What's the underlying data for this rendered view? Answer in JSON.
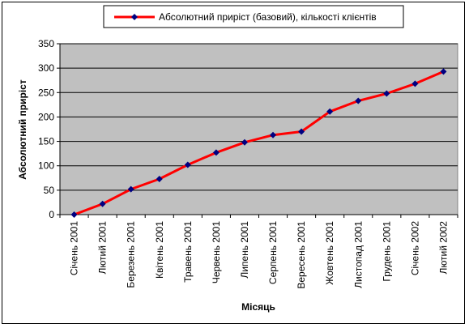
{
  "chart_data": {
    "type": "line",
    "categories": [
      "Січень 2001",
      "Лютий 2001",
      "Березень 2001",
      "Квітень 2001",
      "Травень 2001",
      "Червень 2001",
      "Липень 2001",
      "Серпень 2001",
      "Вересень 2001",
      "Жовтень 2001",
      "Листопад 2001",
      "Грудень 2001",
      "Січень 2002",
      "Лютий 2002"
    ],
    "series": [
      {
        "name": "Абсолютний приріст (базовий), кількості клієнтів",
        "values": [
          0,
          22,
          52,
          73,
          102,
          127,
          148,
          163,
          170,
          211,
          233,
          248,
          268,
          293
        ]
      }
    ],
    "xlabel": "Місяць",
    "ylabel": "Абсолютний приріст",
    "ylim": [
      0,
      350
    ],
    "yticks": [
      0,
      50,
      100,
      150,
      200,
      250,
      300,
      350
    ],
    "grid": true,
    "legend_position": "top",
    "colors": {
      "line": "#ff0000",
      "marker": "#000080",
      "plot_bg": "#c0c0c0",
      "gridline": "#000000"
    }
  }
}
